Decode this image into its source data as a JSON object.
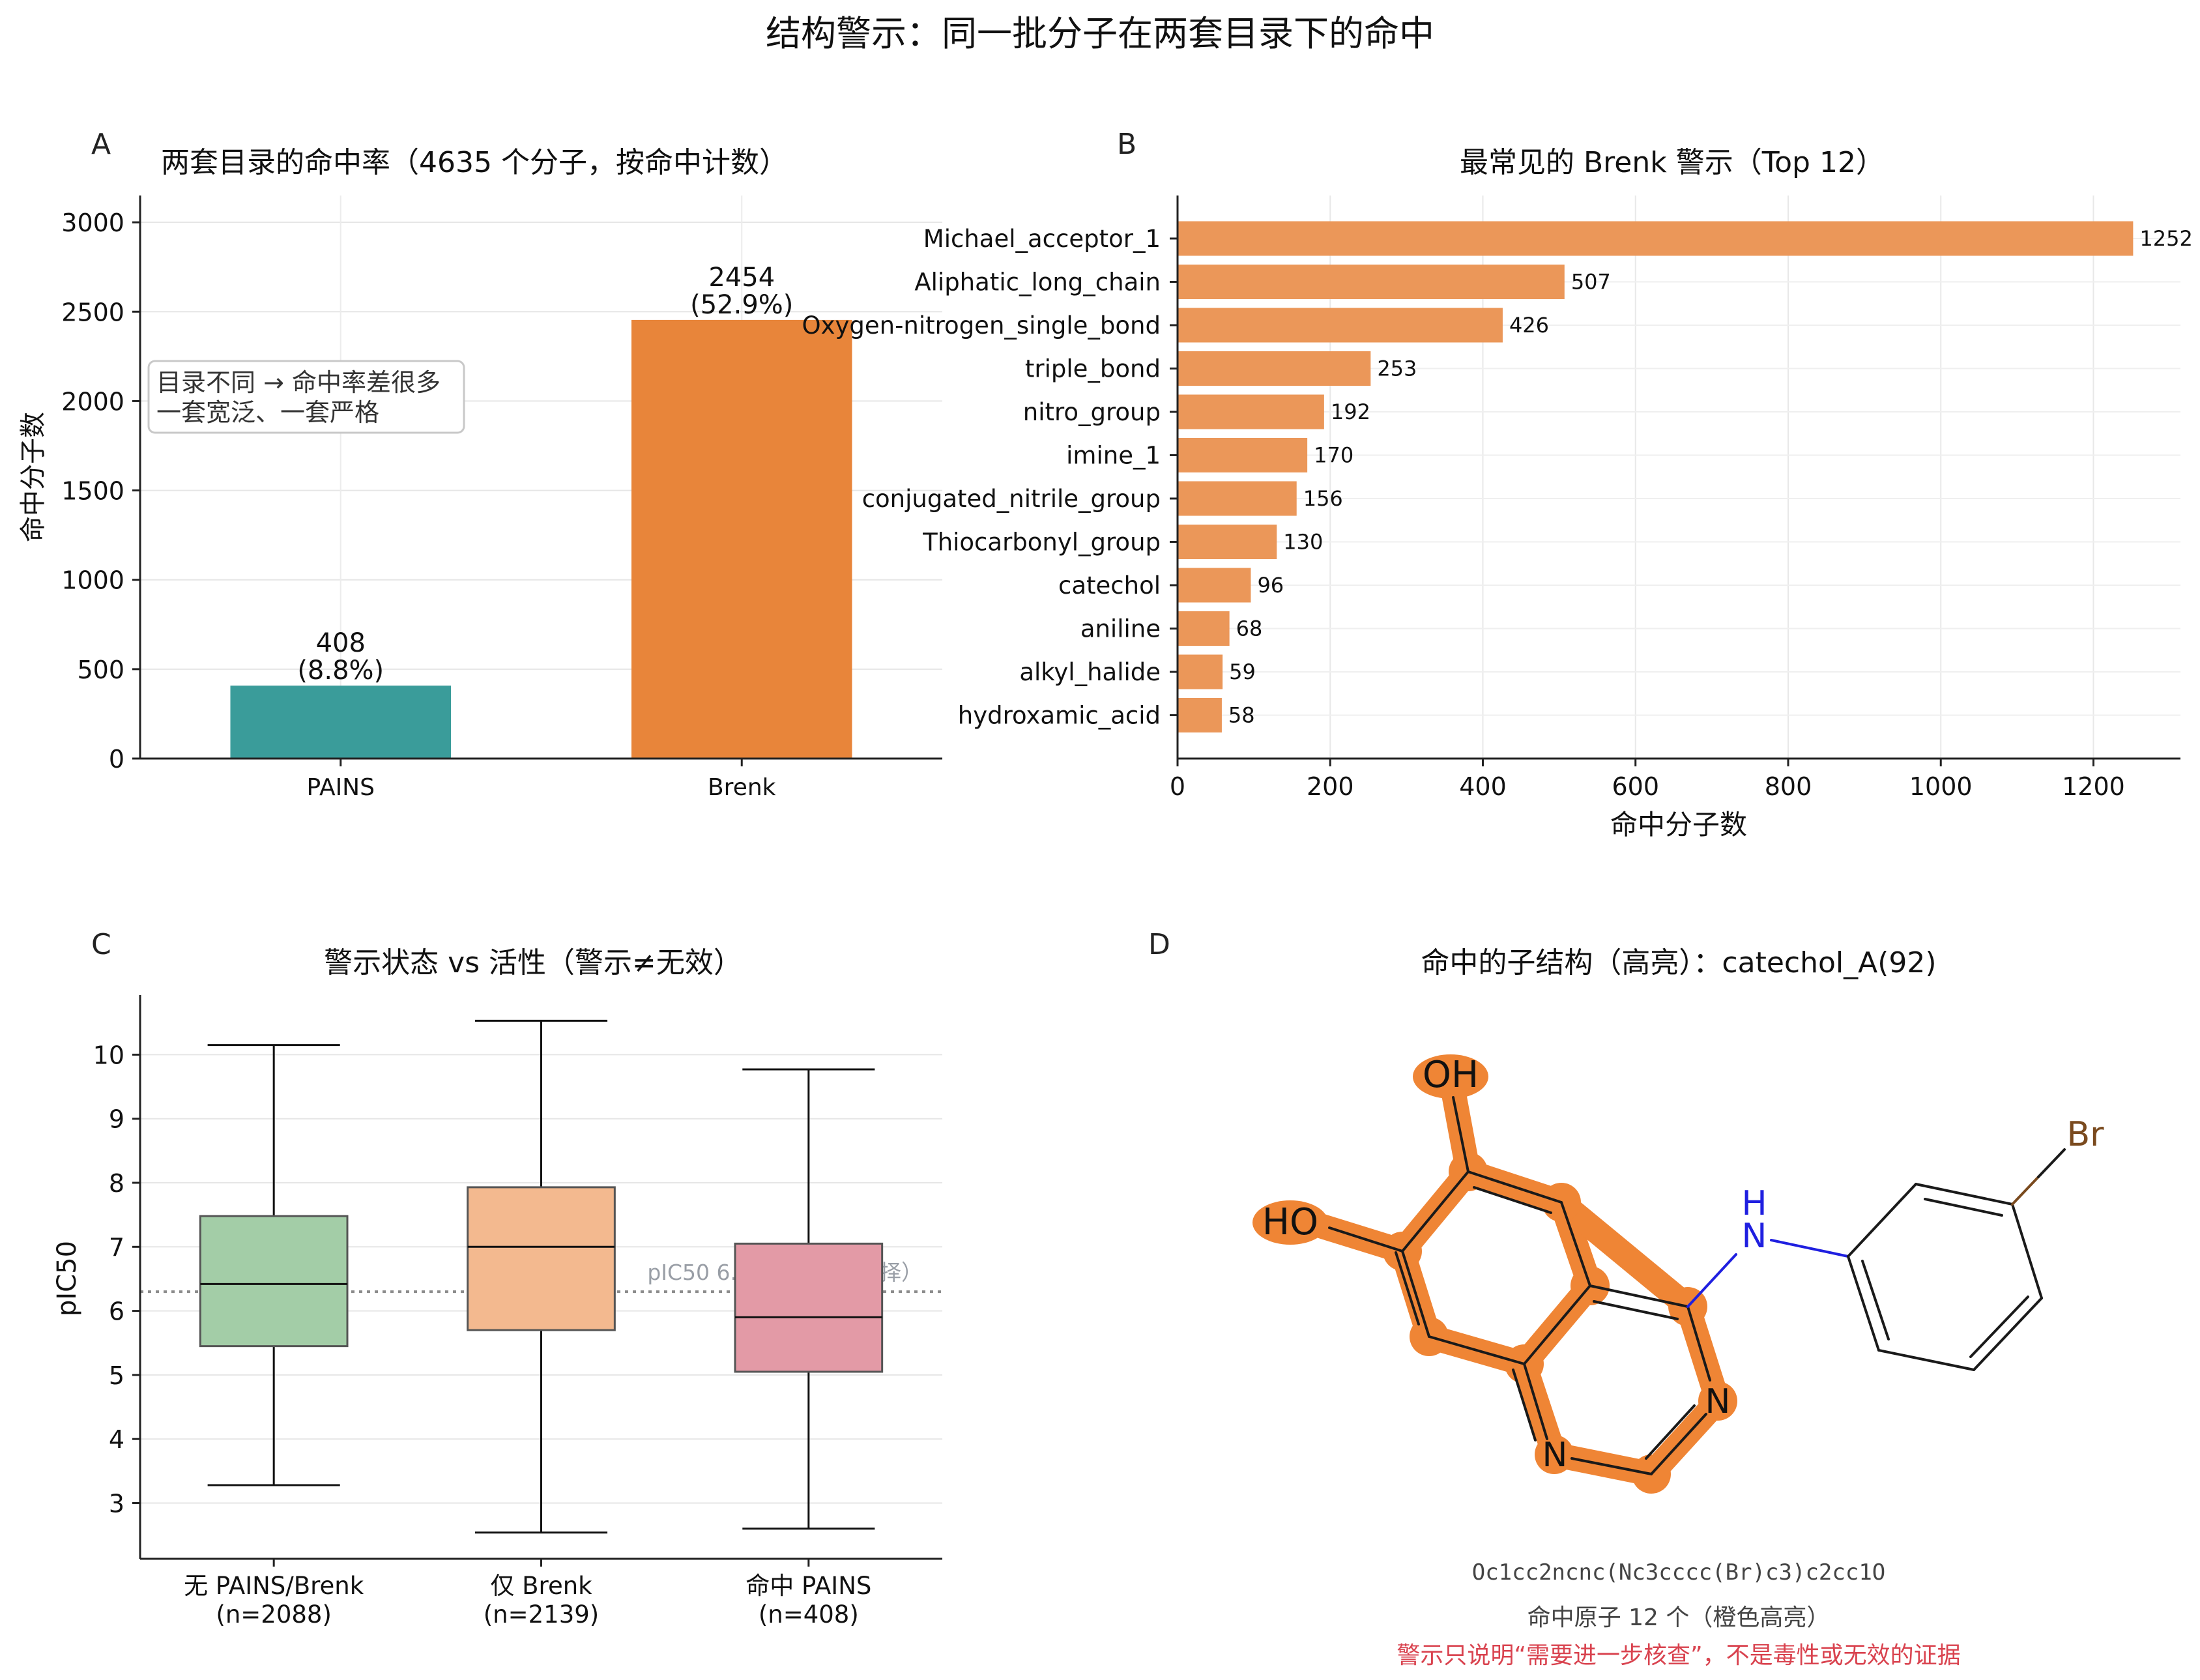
{
  "figure": {
    "suptitle": "结构警示：同一批分子在两套目录下的命中"
  },
  "colors": {
    "pains": "#3a9c9a",
    "brenk": "#e8853a",
    "brenk_bar": "#eb9759",
    "box_none": "#a3cda7",
    "box_brenk": "#f3b98f",
    "box_pains": "#e39aa6",
    "highlight": "#ef8535",
    "nitrogen": "#1f1fe0",
    "bromine": "#7a4a1e",
    "warning_text": "#d9434f",
    "gray_text": "#999ea6"
  },
  "panels": {
    "A": {
      "letter": "A",
      "title": "两套目录的命中率（4635 个分子，按命中计数）",
      "ylabel": "命中分子数",
      "annotation_lines": [
        "目录不同 → 命中率差很多",
        "一套宽泛、一套严格"
      ]
    },
    "B": {
      "letter": "B",
      "title": "最常见的 Brenk 警示（Top 12）",
      "xlabel": "命中分子数"
    },
    "C": {
      "letter": "C",
      "title": "警示状态 vs 活性（警示≠无效）",
      "ylabel": "pIC50",
      "threshold_label": "pIC50 6.3（活性线，选择）"
    },
    "D": {
      "letter": "D",
      "title": "命中的子结构（高亮）：catechol_A(92)",
      "smiles": "Oc1cc2ncnc(Nc3cccc(Br)c3)c2cc1O",
      "atom_note": "命中原子 12 个（橙色高亮）",
      "warning": "警示只说明“需要进一步核查”，不是毒性或无效的证据",
      "atom_labels": {
        "oh_top": "OH",
        "ho_left": "HO",
        "nh_h": "H",
        "nh_n": "N",
        "n_ring1": "N",
        "n_ring2": "N",
        "br": "Br"
      }
    }
  },
  "chart_data": [
    {
      "panel": "A",
      "type": "bar",
      "title": "两套目录的命中率（4635 个分子，按命中计数）",
      "ylabel": "命中分子数",
      "categories": [
        "PAINS",
        "Brenk"
      ],
      "values": [
        408,
        2454
      ],
      "value_labels": [
        "408",
        "2454"
      ],
      "pct_labels": [
        "(8.8%)",
        "(52.9%)"
      ],
      "ylim": [
        0,
        3150
      ],
      "yticks": [
        0,
        500,
        1000,
        1500,
        2000,
        2500,
        3000
      ],
      "grid": true
    },
    {
      "panel": "B",
      "type": "bar",
      "orientation": "horizontal",
      "title": "最常见的 Brenk 警示（Top 12）",
      "xlabel": "命中分子数",
      "categories": [
        "Michael_acceptor_1",
        "Aliphatic_long_chain",
        "Oxygen-nitrogen_single_bond",
        "triple_bond",
        "nitro_group",
        "imine_1",
        "conjugated_nitrile_group",
        "Thiocarbonyl_group",
        "catechol",
        "aniline",
        "alkyl_halide",
        "hydroxamic_acid"
      ],
      "values": [
        1252,
        507,
        426,
        253,
        192,
        170,
        156,
        130,
        96,
        68,
        59,
        58
      ],
      "value_labels": [
        "1252",
        "507",
        "426",
        "253",
        "192",
        "170",
        "156",
        "130",
        "96",
        "68",
        "59",
        "58"
      ],
      "xlim": [
        0,
        1314
      ],
      "xticks": [
        0,
        200,
        400,
        600,
        800,
        1000,
        1200
      ],
      "grid": true
    },
    {
      "panel": "C",
      "type": "box",
      "title": "警示状态 vs 活性（警示≠无效）",
      "ylabel": "pIC50",
      "categories": [
        "无 PAINS/Brenk",
        "仅 Brenk",
        "命中 PAINS"
      ],
      "category_counts": [
        "(n=2088)",
        "(n=2139)",
        "(n=408)"
      ],
      "boxes": [
        {
          "whisker_low": 3.28,
          "q1": 5.45,
          "median": 6.42,
          "q3": 7.48,
          "whisker_high": 10.15
        },
        {
          "whisker_low": 2.54,
          "q1": 5.7,
          "median": 7.0,
          "q3": 7.93,
          "whisker_high": 10.53
        },
        {
          "whisker_low": 2.6,
          "q1": 5.05,
          "median": 5.9,
          "q3": 7.05,
          "whisker_high": 9.77
        }
      ],
      "threshold": 6.3,
      "ylim": [
        2.13,
        10.93
      ],
      "yticks": [
        3,
        4,
        5,
        6,
        7,
        8,
        9,
        10
      ],
      "grid": true
    }
  ]
}
